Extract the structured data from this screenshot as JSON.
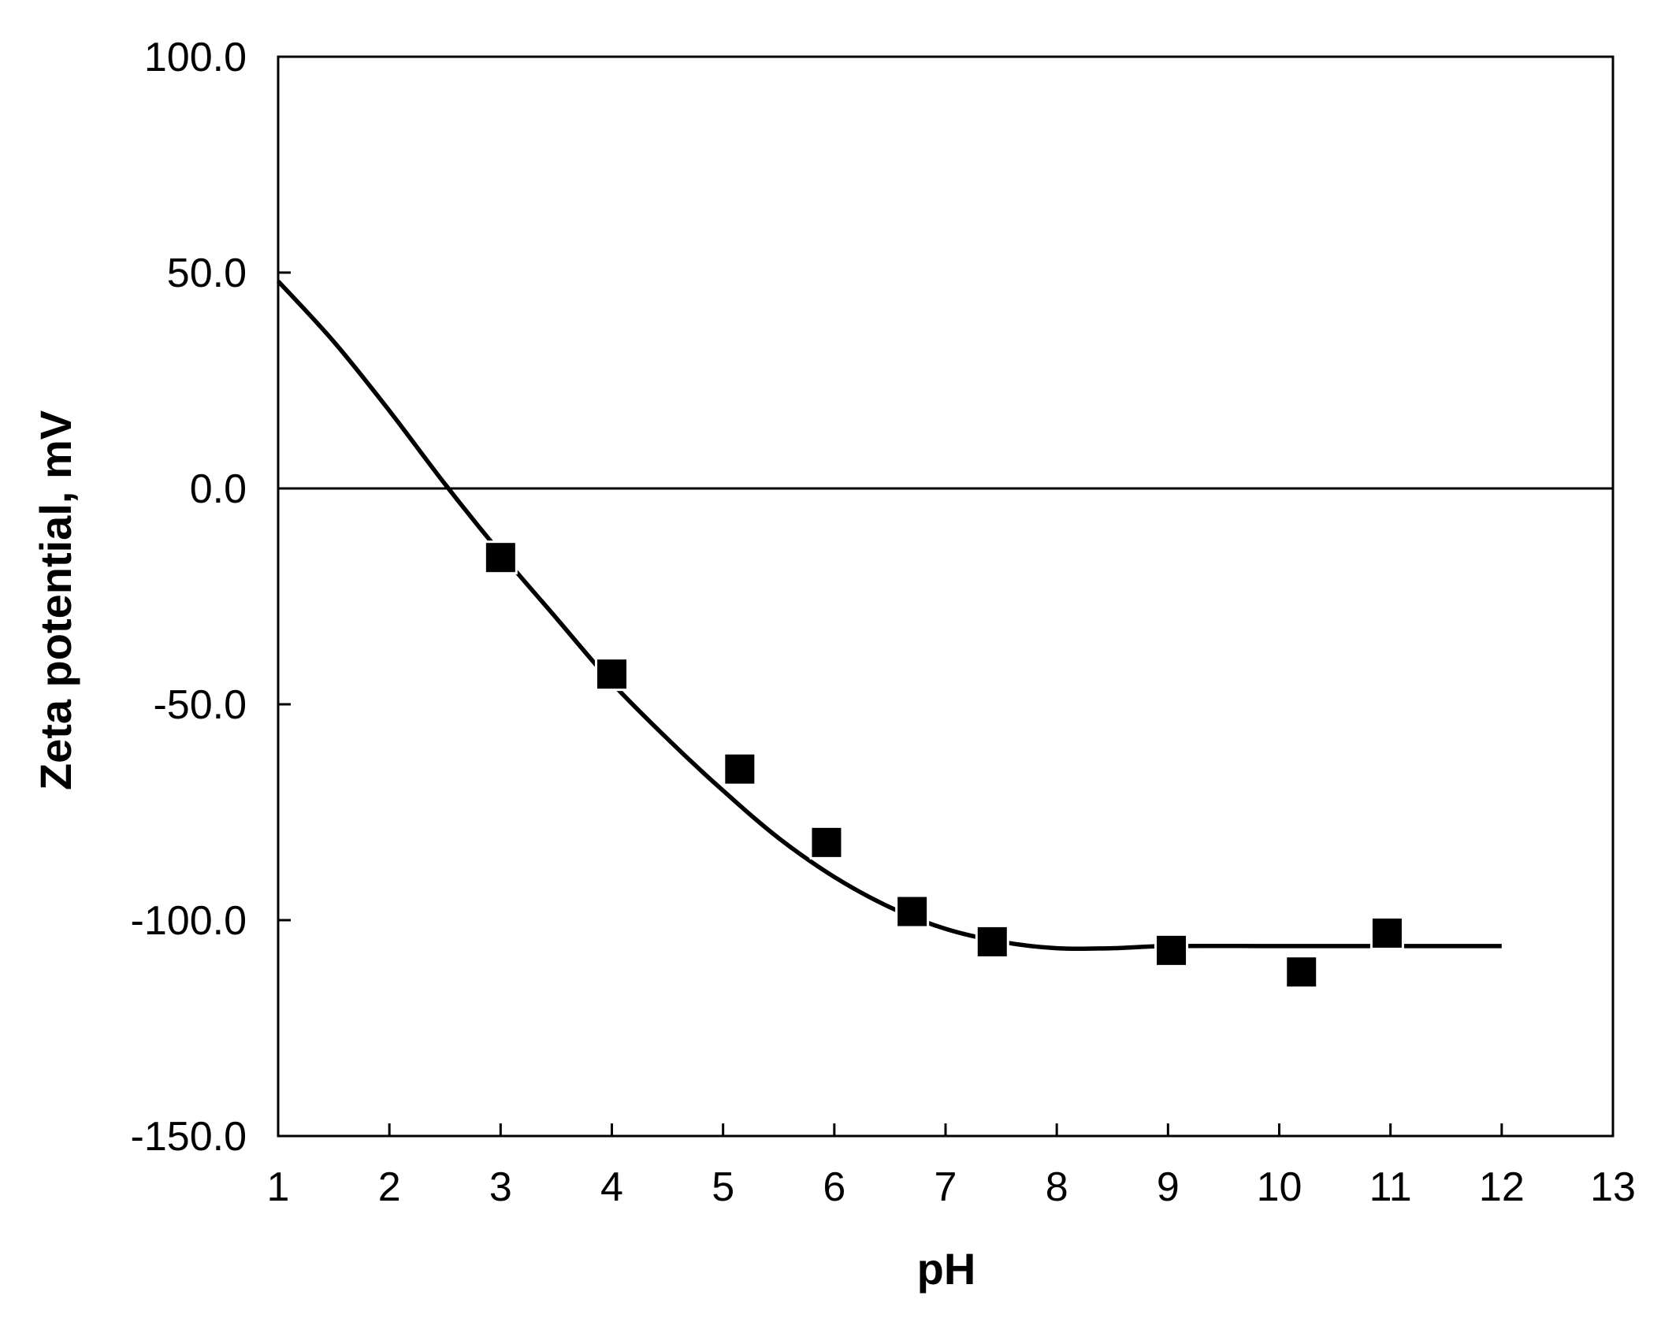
{
  "chart_data": {
    "type": "scatter",
    "title": "",
    "xlabel": "pH",
    "ylabel": "Zeta potential, mV",
    "xlim": [
      1,
      13
    ],
    "ylim": [
      -150,
      100
    ],
    "x_ticks": [
      "1",
      "2",
      "3",
      "4",
      "5",
      "6",
      "7",
      "8",
      "9",
      "10",
      "11",
      "12",
      "13"
    ],
    "y_ticks": [
      "100.0",
      "50.0",
      "0.0",
      "-50.0",
      "-100.0",
      "-150.0"
    ],
    "grid": false,
    "legend": "none",
    "zero_line": true,
    "series": [
      {
        "marker": "square",
        "color": "#000000",
        "x": [
          3.0,
          4.0,
          5.15,
          5.93,
          6.7,
          7.42,
          9.03,
          10.2,
          10.97
        ],
        "y": [
          -16,
          -43,
          -65,
          -82,
          -98,
          -105,
          -107,
          -112,
          -103
        ]
      }
    ],
    "trend_line": {
      "style": "smooth",
      "color": "#000000",
      "x": [
        1.0,
        1.5,
        2.0,
        2.5,
        3.0,
        3.5,
        4.0,
        4.5,
        5.0,
        5.5,
        6.0,
        6.5,
        7.0,
        7.5,
        8.0,
        8.5,
        9.0,
        10.0,
        11.0,
        12.0
      ],
      "y": [
        48,
        34,
        18,
        1,
        -15,
        -30,
        -45,
        -58,
        -70,
        -81,
        -90,
        -97,
        -102,
        -105,
        -106.5,
        -106.5,
        -106,
        -106,
        -106,
        -106
      ]
    }
  }
}
